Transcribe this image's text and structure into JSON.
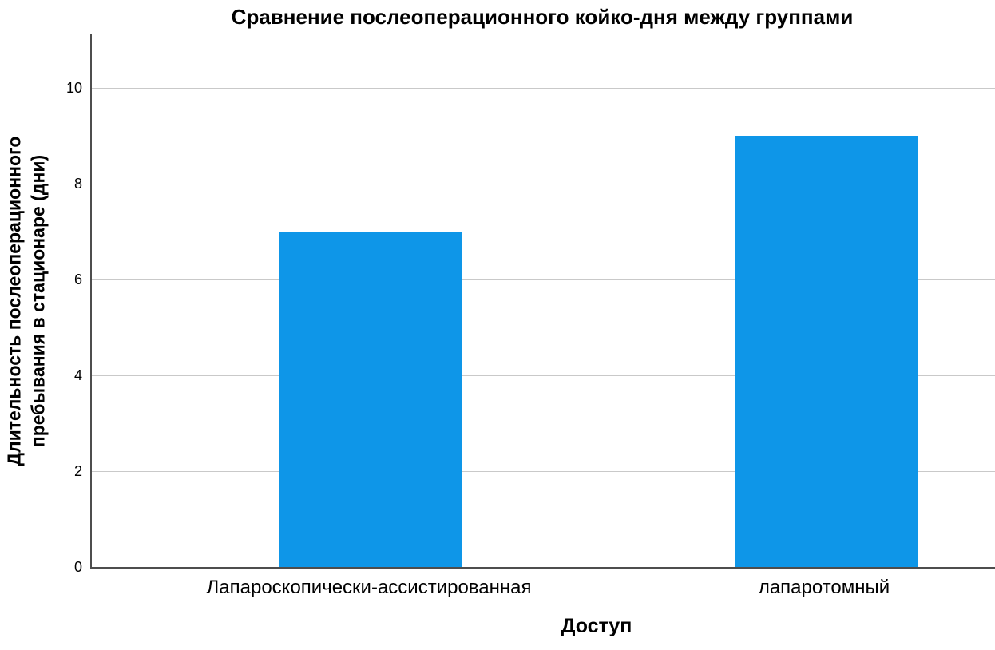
{
  "chart_data": {
    "type": "bar",
    "title": "Сравнение послеоперационного койко-дня между группами",
    "xlabel": "Доступ",
    "ylabel": "Длительность послеоперационного пребывания в стационаре (дни)",
    "ylabel_lines": [
      "Длительность послеоперационного",
      "пребывания в стационаре (дни)"
    ],
    "categories": [
      "Лапароскопически-ассистированная",
      "лапаротомный"
    ],
    "values": [
      7,
      9
    ],
    "yticks": [
      0,
      2,
      4,
      6,
      8,
      10
    ],
    "ylim": [
      0,
      11.1
    ],
    "grid": true,
    "legend_position": "none",
    "colors": {
      "bar_fill": "#0E96E8",
      "axis_line": "#4D4D4D",
      "gridline": "#C9C9C9",
      "text": "#000000",
      "background": "#FFFFFF"
    }
  }
}
